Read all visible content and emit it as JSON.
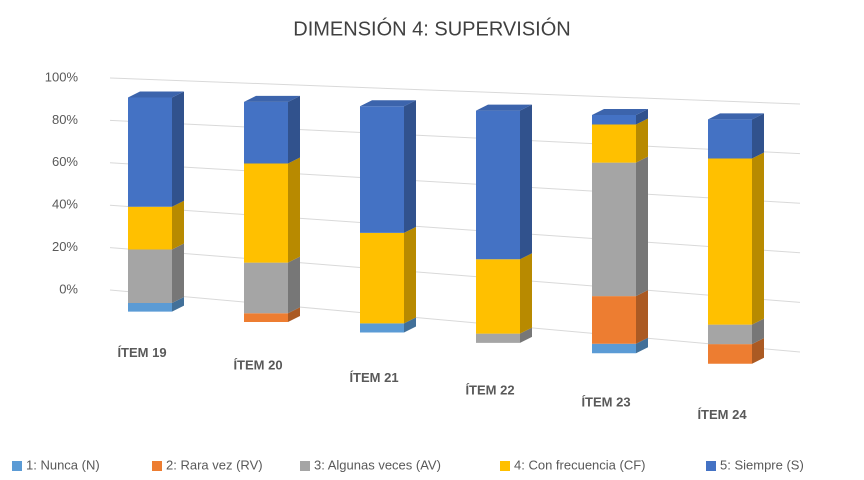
{
  "chart_data": {
    "type": "bar3d_stacked",
    "title": "DIMENSIÓN 4: SUPERVISIÓN",
    "categories": [
      "ÍTEM 19",
      "ÍTEM 20",
      "ÍTEM 21",
      "ÍTEM 22",
      "ÍTEM 23",
      "ÍTEM 24"
    ],
    "series": [
      {
        "name": "1: Nunca (N)",
        "color": "#5b9bd5",
        "values": [
          4,
          0,
          4,
          0,
          4,
          0
        ]
      },
      {
        "name": "2: Rara vez (RV)",
        "color": "#ed7d31",
        "values": [
          0,
          4,
          0,
          0,
          20,
          8
        ]
      },
      {
        "name": "3: Algunas veces (AV)",
        "color": "#a5a5a5",
        "values": [
          25,
          23,
          0,
          4,
          56,
          8
        ]
      },
      {
        "name": "4: Con frecuencia (CF)",
        "color": "#ffc000",
        "values": [
          20,
          45,
          40,
          32,
          16,
          68
        ]
      },
      {
        "name": "5: Siempre (S)",
        "color": "#4472c4",
        "values": [
          51,
          28,
          56,
          64,
          4,
          16
        ]
      }
    ],
    "ylim": [
      0,
      100
    ],
    "yticks": [
      {
        "value": 0,
        "label": "0%"
      },
      {
        "value": 20,
        "label": "20%"
      },
      {
        "value": 40,
        "label": "40%"
      },
      {
        "value": 60,
        "label": "60%"
      },
      {
        "value": 80,
        "label": "80%"
      },
      {
        "value": 100,
        "label": "100%"
      }
    ],
    "grid": true,
    "legend": "bottom"
  }
}
